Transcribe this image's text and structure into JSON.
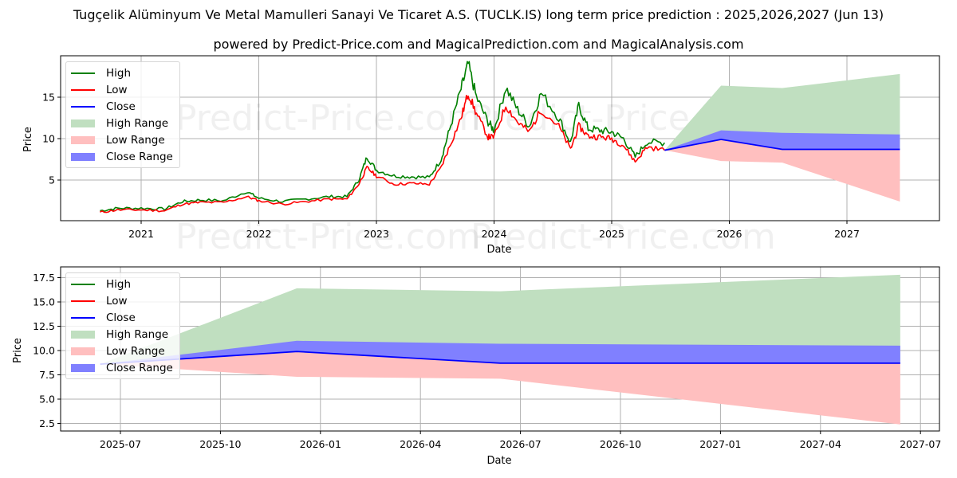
{
  "header": {
    "title": "Tugçelik Alüminyum Ve Metal Mamulleri Sanayi Ve Ticaret A.S. (TUCLK.IS) long term price prediction : 2025,2026,2027 (Jun 13)",
    "subtitle": "powered by Predict-Price.com and MagicalPrediction.com and MagicalAnalysis.com"
  },
  "watermark": "Predict-Price.com",
  "colors": {
    "high": "#008000",
    "low": "#ff0000",
    "close": "#0000ff",
    "high_range": "#c0dfc0",
    "low_range": "#ffbfbf",
    "close_range": "#8080ff",
    "grid": "#b0b0b0"
  },
  "legend": {
    "items": [
      {
        "label": "High",
        "kind": "line",
        "color": "#008000"
      },
      {
        "label": "Low",
        "kind": "line",
        "color": "#ff0000"
      },
      {
        "label": "Close",
        "kind": "line",
        "color": "#0000ff"
      },
      {
        "label": "High Range",
        "kind": "patch",
        "color": "#c0dfc0"
      },
      {
        "label": "Low Range",
        "kind": "patch",
        "color": "#ffbfbf"
      },
      {
        "label": "Close Range",
        "kind": "patch",
        "color": "#8080ff"
      }
    ]
  },
  "chart_data": [
    {
      "type": "line",
      "title": "Long term history and forecast",
      "xlabel": "Date",
      "ylabel": "Price",
      "xticks": [
        "2021",
        "2022",
        "2023",
        "2024",
        "2025",
        "2026",
        "2027"
      ],
      "yticks": [
        5,
        10,
        15
      ],
      "ylim": [
        0,
        20
      ],
      "grid": true,
      "legend_position": "upper left",
      "history": {
        "x": [
          2020.65,
          2020.8,
          2021.0,
          2021.2,
          2021.35,
          2021.5,
          2021.7,
          2021.9,
          2022.0,
          2022.2,
          2022.4,
          2022.6,
          2022.75,
          2022.85,
          2022.92,
          2023.0,
          2023.15,
          2023.3,
          2023.45,
          2023.55,
          2023.62,
          2023.72,
          2023.78,
          2023.85,
          2023.95,
          2024.0,
          2024.1,
          2024.2,
          2024.3,
          2024.4,
          2024.55,
          2024.65,
          2024.72,
          2024.8,
          2024.9,
          2025.0,
          2025.1,
          2025.2,
          2025.3,
          2025.45
        ],
        "high": [
          1.3,
          1.6,
          1.6,
          1.5,
          2.4,
          2.6,
          2.5,
          3.6,
          2.8,
          2.4,
          2.7,
          3.0,
          3.0,
          5.0,
          7.8,
          6.2,
          5.5,
          5.4,
          5.3,
          7.5,
          11.0,
          16.0,
          19.0,
          15.0,
          12.0,
          11.0,
          16.2,
          13.5,
          11.5,
          15.5,
          12.5,
          9.5,
          14.0,
          11.2,
          11.0,
          10.8,
          10.0,
          7.8,
          9.6,
          9.5
        ],
        "low": [
          1.1,
          1.4,
          1.4,
          1.3,
          2.1,
          2.3,
          2.3,
          3.0,
          2.5,
          2.1,
          2.4,
          2.7,
          2.7,
          4.5,
          6.5,
          5.5,
          4.5,
          4.6,
          4.5,
          6.5,
          9.0,
          12.5,
          15.5,
          13.0,
          10.2,
          10.2,
          14.0,
          12.0,
          10.8,
          13.5,
          11.5,
          8.7,
          11.5,
          10.3,
          10.2,
          10.0,
          9.2,
          7.2,
          9.0,
          8.6
        ]
      },
      "forecast": {
        "x": [
          2025.45,
          2025.93,
          2026.45,
          2027.45
        ],
        "close": [
          8.6,
          9.9,
          8.7,
          8.7
        ],
        "high_range_top": [
          8.6,
          16.4,
          16.1,
          17.8
        ],
        "close_range_top": [
          8.6,
          11.0,
          10.7,
          10.5
        ],
        "low_range_bottom": [
          8.6,
          7.3,
          7.1,
          2.4
        ]
      }
    },
    {
      "type": "area",
      "title": "Forecast detail",
      "xlabel": "Date",
      "ylabel": "Price",
      "xticks": [
        "2025-07",
        "2025-10",
        "2026-01",
        "2026-04",
        "2026-07",
        "2026-10",
        "2027-01",
        "2027-04",
        "2027-07"
      ],
      "yticks": [
        2.5,
        5.0,
        7.5,
        10.0,
        12.5,
        15.0,
        17.5
      ],
      "ylim": [
        1.6,
        18.6
      ],
      "grid": true,
      "legend_position": "upper left",
      "forecast": {
        "dates": [
          "2025-06-13",
          "2025-12-10",
          "2026-06-13",
          "2027-06-13"
        ],
        "close": [
          8.6,
          9.9,
          8.7,
          8.7
        ],
        "high_range_top": [
          8.6,
          16.4,
          16.1,
          17.8
        ],
        "close_range_top": [
          8.6,
          11.0,
          10.7,
          10.5
        ],
        "low_range_bottom": [
          8.6,
          7.3,
          7.1,
          2.4
        ]
      }
    }
  ]
}
